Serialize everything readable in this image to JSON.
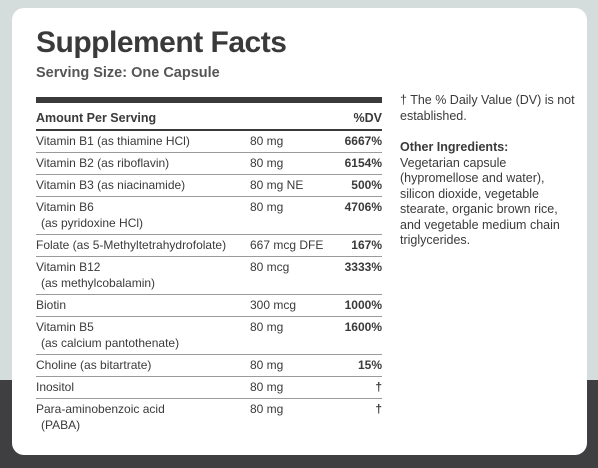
{
  "title": "Supplement Facts",
  "serving_size": "Serving Size: One Capsule",
  "table": {
    "header_left": "Amount Per Serving",
    "header_right": "%DV",
    "rows": [
      {
        "name": "Vitamin B1 (as thiamine HCl)",
        "sub": "",
        "amount": "80 mg",
        "dv": "6667%"
      },
      {
        "name": "Vitamin B2 (as riboflavin)",
        "sub": "",
        "amount": "80 mg",
        "dv": "6154%"
      },
      {
        "name": "Vitamin B3 (as niacinamide)",
        "sub": "",
        "amount": "80 mg NE",
        "dv": "500%"
      },
      {
        "name": "Vitamin B6",
        "sub": "(as pyridoxine HCl)",
        "amount": "80 mg",
        "dv": "4706%"
      },
      {
        "name": "Folate (as 5-Methyltetrahydrofolate)",
        "sub": "",
        "amount": "667 mcg DFE",
        "dv": "167%"
      },
      {
        "name": "Vitamin B12",
        "sub": "(as methylcobalamin)",
        "amount": "80 mcg",
        "dv": "3333%"
      },
      {
        "name": "Biotin",
        "sub": "",
        "amount": "300 mcg",
        "dv": "1000%"
      },
      {
        "name": "Vitamin B5",
        "sub": "(as calcium pantothenate)",
        "amount": "80 mg",
        "dv": "1600%"
      },
      {
        "name": "Choline (as bitartrate)",
        "sub": "",
        "amount": "80 mg",
        "dv": "15%"
      },
      {
        "name": "Inositol",
        "sub": "",
        "amount": "80 mg",
        "dv": "†"
      },
      {
        "name": "Para-aminobenzoic acid",
        "sub": "(PABA)",
        "amount": "80 mg",
        "dv": "†"
      }
    ]
  },
  "footnote": "† The % Daily Value (DV) is not established.",
  "other_ingredients": {
    "label": "Other Ingredients:",
    "text": "Vegetarian capsule (hypromellose and water), silicon dioxide, vegetable stearate, organic brown rice, and vegetable medium chain triglycerides."
  }
}
